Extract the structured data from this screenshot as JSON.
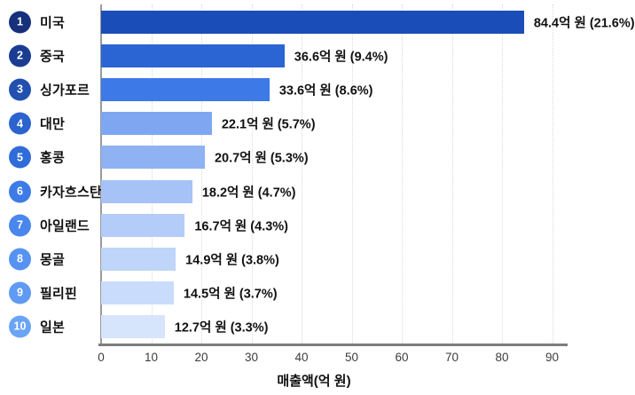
{
  "chart_data": {
    "type": "bar",
    "orientation": "horizontal",
    "title": "",
    "xlabel": "매출액(억 원)",
    "ylabel": "",
    "xlim": [
      0,
      92.5
    ],
    "x_ticks": [
      0,
      10,
      20,
      30,
      40,
      50,
      60,
      70,
      80,
      90
    ],
    "grid": "dotted-vertical",
    "ranks": [
      "1",
      "2",
      "3",
      "4",
      "5",
      "6",
      "7",
      "8",
      "9",
      "10"
    ],
    "categories": [
      "미국",
      "중국",
      "싱가포르",
      "대만",
      "홍콩",
      "카자흐스탄",
      "아일랜드",
      "몽골",
      "필리핀",
      "일본"
    ],
    "values": [
      84.4,
      36.6,
      33.6,
      22.1,
      20.7,
      18.2,
      16.7,
      14.9,
      14.5,
      12.7
    ],
    "percentages": [
      21.6,
      9.4,
      8.6,
      5.7,
      5.3,
      4.7,
      4.3,
      3.8,
      3.7,
      3.3
    ],
    "value_labels": [
      "84.4억 원 (21.6%)",
      "36.6억 원 (9.4%)",
      "33.6억 원 (8.6%)",
      "22.1억 원 (5.7%)",
      "20.7억 원 (5.3%)",
      "18.2억 원 (4.7%)",
      "16.7억 원 (4.3%)",
      "14.9억 원 (3.8%)",
      "14.5억 원 (3.7%)",
      "12.7억 원 (3.3%)"
    ],
    "bar_colors": [
      "#1A4DB8",
      "#2B65D4",
      "#3D7AE8",
      "#7FA7F1",
      "#8FB2F3",
      "#A7C2F6",
      "#B3CCF8",
      "#BFD5F9",
      "#CADCFB",
      "#D6E4FC"
    ],
    "badge_colors": [
      "#16307C",
      "#1A3C92",
      "#2150AF",
      "#2B64CE",
      "#306CD9",
      "#3D7BE7",
      "#4A86EE",
      "#5592F1",
      "#5F9AF3",
      "#6BA4F5"
    ],
    "axis_line_color": "#7d7d7d",
    "gridline_color": "#d9d9d9",
    "text_color": "#111111"
  }
}
